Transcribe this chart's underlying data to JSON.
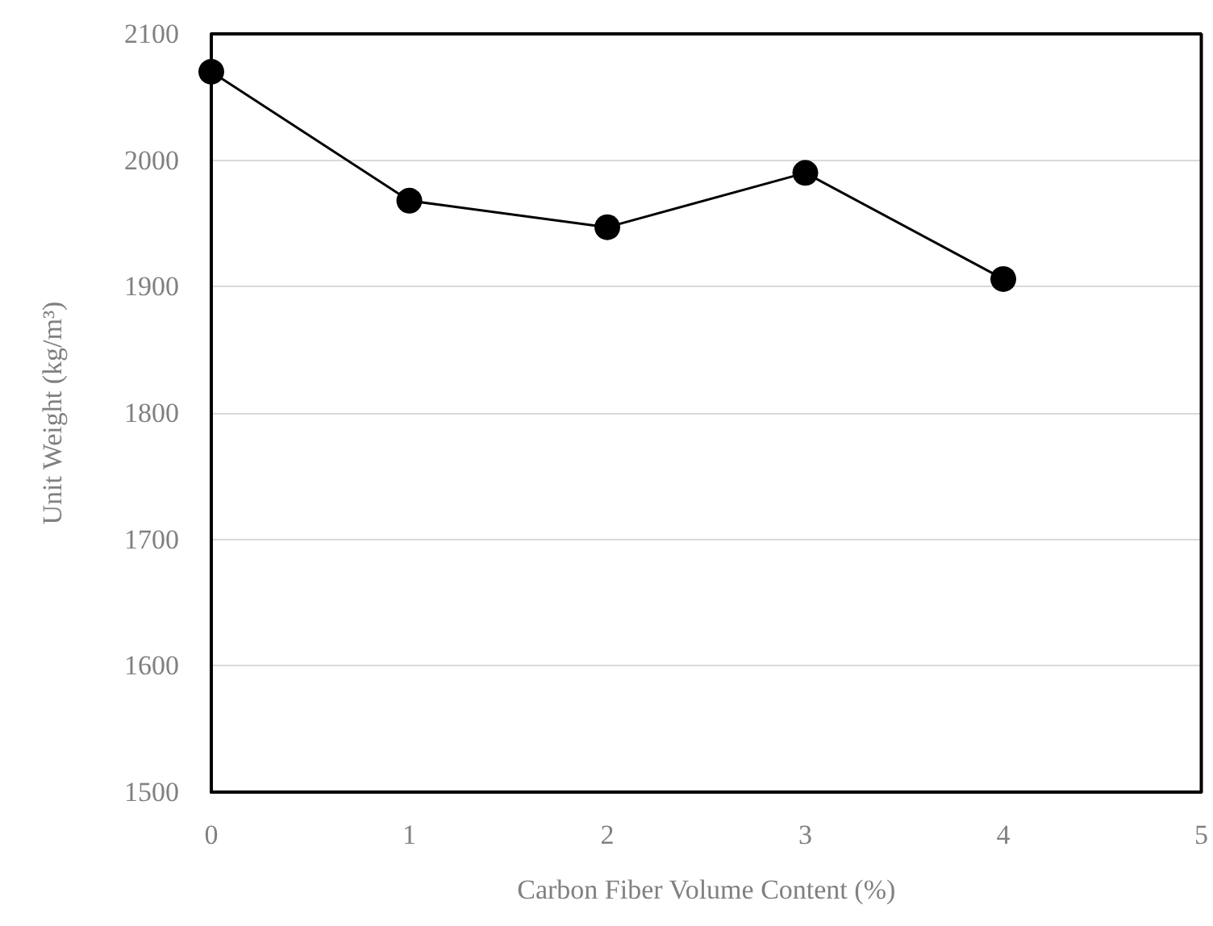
{
  "chart_data": {
    "type": "line",
    "xlabel": "Carbon Fiber Volume Content (%)",
    "ylabel": "Unit Weight (kg/m³)",
    "x": [
      0,
      1,
      2,
      3,
      4
    ],
    "series": [
      {
        "color": "#000000",
        "values": [
          2070,
          1968,
          1947,
          1990,
          1906
        ]
      }
    ],
    "xlim": [
      0,
      5
    ],
    "xticks": [
      0,
      1,
      2,
      3,
      4,
      5
    ],
    "ylim": [
      1500,
      2100
    ],
    "yticks": [
      1500,
      1600,
      1700,
      1800,
      1900,
      2000,
      2100
    ],
    "grid": "y",
    "marker": "circle",
    "line_style": "solid"
  }
}
